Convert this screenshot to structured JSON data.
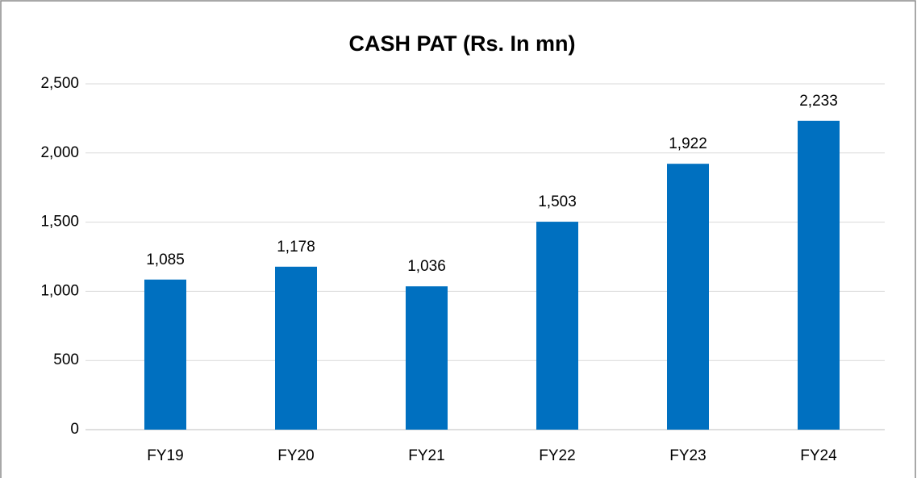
{
  "chart_data": {
    "type": "bar",
    "title": "CASH PAT (Rs. In mn)",
    "categories": [
      "FY19",
      "FY20",
      "FY21",
      "FY22",
      "FY23",
      "FY24"
    ],
    "values": [
      1085,
      1178,
      1036,
      1503,
      1922,
      2233
    ],
    "value_labels": [
      "1,085",
      "1,178",
      "1,036",
      "1,503",
      "1,922",
      "2,233"
    ],
    "color": "#0070c0",
    "ylim": [
      0,
      2500
    ],
    "yticks": [
      0,
      500,
      {
        "value": 1000,
        "label": "1,000"
      },
      {
        "value": 1500,
        "label": "1,500"
      },
      {
        "value": 2000,
        "label": "2,000"
      },
      {
        "value": 2500,
        "label": "2,500"
      }
    ],
    "grid": true
  }
}
